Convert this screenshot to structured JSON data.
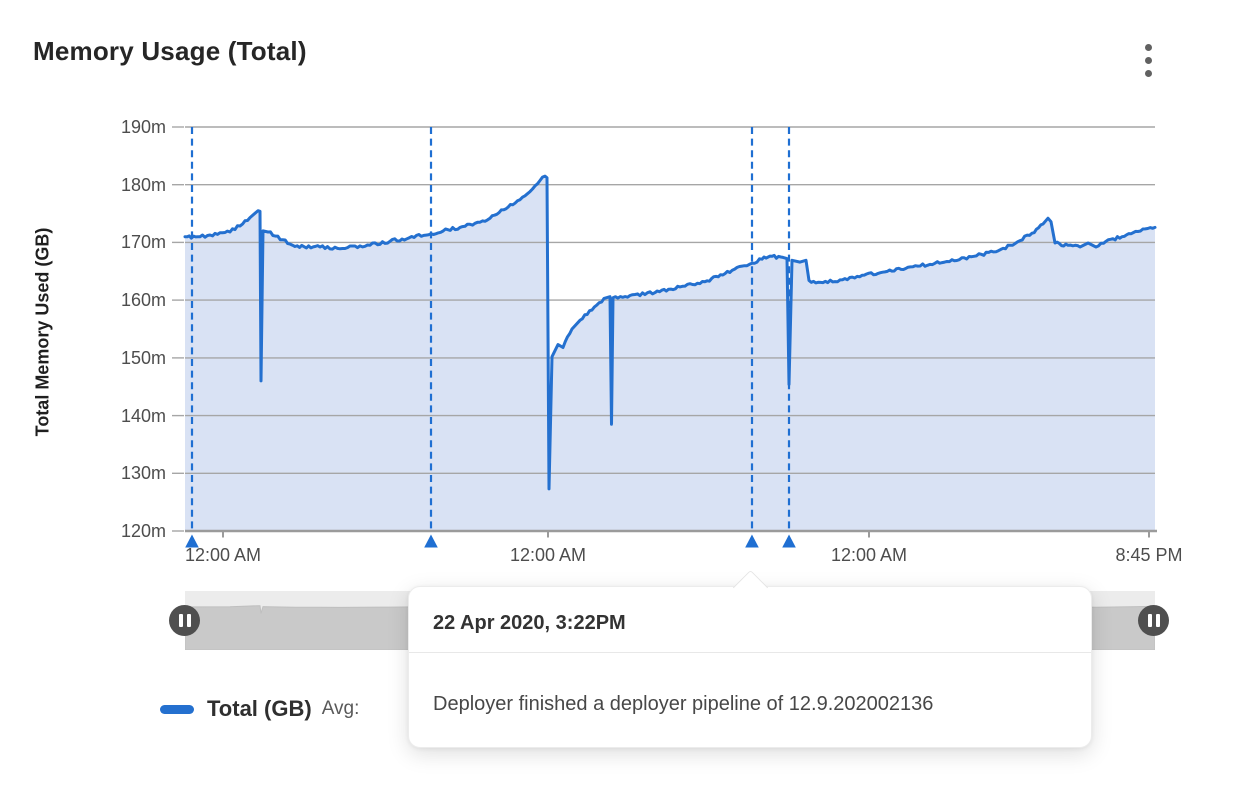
{
  "card": {
    "title": "Memory Usage (Total)",
    "menu_icon": "kebab-vertical"
  },
  "chart_data": {
    "type": "area",
    "title": "Memory Usage (Total)",
    "ylabel": "Total Memory Used (GB)",
    "xlabel": "",
    "ylim": [
      120,
      190
    ],
    "grid": true,
    "legend_position": "bottom-left",
    "y_ticks": [
      {
        "value": 190,
        "label": "190m"
      },
      {
        "value": 180,
        "label": "180m"
      },
      {
        "value": 170,
        "label": "170m"
      },
      {
        "value": 160,
        "label": "160m"
      },
      {
        "value": 150,
        "label": "150m"
      },
      {
        "value": 140,
        "label": "140m"
      },
      {
        "value": 130,
        "label": "130m"
      },
      {
        "value": 120,
        "label": "120m"
      }
    ],
    "x_ticks": [
      {
        "label": "12:00 AM",
        "pos": 0.0392
      },
      {
        "label": "12:00 AM",
        "pos": 0.3742
      },
      {
        "label": "12:00 AM",
        "pos": 0.7052
      },
      {
        "label": "8:45 PM",
        "pos": 0.9938
      }
    ],
    "series": [
      {
        "name": "Total (GB)",
        "color": "#2470cf",
        "fill": "#d9e2f4",
        "points": [
          [
            0,
            171.0
          ],
          [
            0.0155,
            171.0
          ],
          [
            0.0464,
            171.8
          ],
          [
            0.067,
            174.3
          ],
          [
            0.0753,
            175.5
          ],
          [
            0.0773,
            175.4
          ],
          [
            0.0784,
            146.0
          ],
          [
            0.0804,
            172.0
          ],
          [
            0.0856,
            171.8
          ],
          [
            0.1134,
            169.3
          ],
          [
            0.1392,
            169.2
          ],
          [
            0.1598,
            168.9
          ],
          [
            0.1804,
            169.4
          ],
          [
            0.2113,
            170.2
          ],
          [
            0.2536,
            171.5
          ],
          [
            0.2835,
            172.6
          ],
          [
            0.3144,
            174.2
          ],
          [
            0.3402,
            176.8
          ],
          [
            0.3608,
            179.8
          ],
          [
            0.3711,
            181.5
          ],
          [
            0.3732,
            181.2
          ],
          [
            0.3753,
            127.3
          ],
          [
            0.3784,
            150.2
          ],
          [
            0.3845,
            152.3
          ],
          [
            0.3897,
            151.8
          ],
          [
            0.399,
            155.0
          ],
          [
            0.4072,
            156.5
          ],
          [
            0.4196,
            158.3
          ],
          [
            0.432,
            160.3
          ],
          [
            0.4381,
            160.6
          ],
          [
            0.4397,
            138.5
          ],
          [
            0.4412,
            160.4
          ],
          [
            0.4588,
            160.8
          ],
          [
            0.4845,
            161.3
          ],
          [
            0.5103,
            162.3
          ],
          [
            0.536,
            163.2
          ],
          [
            0.5567,
            164.6
          ],
          [
            0.5742,
            165.9
          ],
          [
            0.5845,
            166.4
          ],
          [
            0.5948,
            167.1
          ],
          [
            0.6052,
            167.6
          ],
          [
            0.6165,
            167.4
          ],
          [
            0.6206,
            167.2
          ],
          [
            0.6227,
            145.4
          ],
          [
            0.6258,
            166.9
          ],
          [
            0.634,
            166.6
          ],
          [
            0.6402,
            166.9
          ],
          [
            0.6433,
            163.4
          ],
          [
            0.6526,
            163.1
          ],
          [
            0.6753,
            163.5
          ],
          [
            0.698,
            164.3
          ],
          [
            0.7216,
            164.9
          ],
          [
            0.7454,
            165.7
          ],
          [
            0.768,
            166.2
          ],
          [
            0.7907,
            167.0
          ],
          [
            0.8134,
            167.6
          ],
          [
            0.8361,
            168.4
          ],
          [
            0.8557,
            169.8
          ],
          [
            0.8732,
            171.6
          ],
          [
            0.8845,
            173.2
          ],
          [
            0.8897,
            174.2
          ],
          [
            0.8928,
            173.6
          ],
          [
            0.8969,
            169.9
          ],
          [
            0.9103,
            169.5
          ],
          [
            0.9227,
            169.2
          ],
          [
            0.931,
            169.9
          ],
          [
            0.9392,
            169.2
          ],
          [
            0.9495,
            170.2
          ],
          [
            0.966,
            171.0
          ],
          [
            0.9825,
            171.9
          ],
          [
            1,
            172.6
          ]
        ]
      }
    ],
    "events": {
      "color": "#1f6fd2",
      "markers": [
        {
          "pos": 0.0072
        },
        {
          "pos": 0.2536
        },
        {
          "pos": 0.5845,
          "selected": true
        },
        {
          "pos": 0.6227
        }
      ]
    }
  },
  "tooltip": {
    "timestamp": "22 Apr 2020, 3:22PM",
    "description": "Deployer finished a deployer pipeline of 12.9.202002136"
  },
  "legend": {
    "swatch_color": "#2470cf",
    "name": "Total (GB)",
    "stats_prefix": "Avg:"
  },
  "colors": {
    "grid": "#a6a6a6",
    "axis": "#9b9b9b",
    "tick_text": "#4d4d4d",
    "slider_track": "#ececec",
    "slider_minimap": "#c9c9c9",
    "slider_handle": "#4f4f4f"
  }
}
